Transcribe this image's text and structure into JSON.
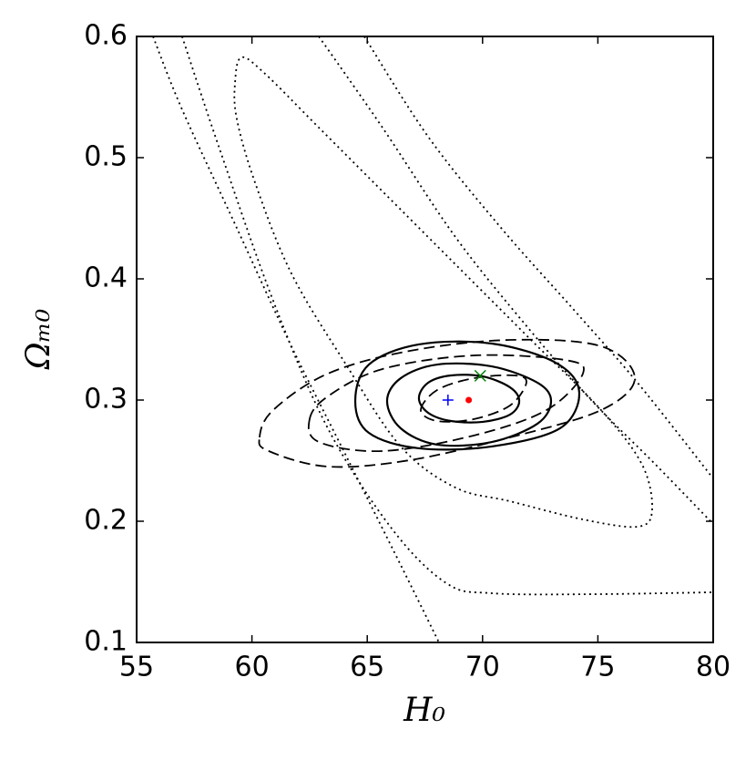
{
  "chart_data": {
    "type": "contour",
    "xlabel": "H₀",
    "ylabel": "Ωₘ₀",
    "xlim": [
      55,
      80
    ],
    "ylim": [
      0.1,
      0.6
    ],
    "xticks": [
      55,
      60,
      65,
      70,
      75,
      80
    ],
    "yticks": [
      0.1,
      0.2,
      0.3,
      0.4,
      0.5,
      0.6
    ],
    "contours": [
      {
        "style": "solid",
        "closed": true,
        "x": [
          67.24,
          67.64,
          68.63,
          70.01,
          71.19,
          71.59,
          71.19,
          70.01,
          68.63,
          67.64
        ],
        "y": [
          0.3015,
          0.3143,
          0.3203,
          0.3195,
          0.3105,
          0.2992,
          0.288,
          0.282,
          0.2827,
          0.2895
        ]
      },
      {
        "style": "solid",
        "closed": true,
        "x": [
          65.86,
          66.45,
          68.03,
          70.4,
          72.38,
          72.97,
          72.38,
          70.4,
          68.03,
          66.45
        ],
        "y": [
          0.2992,
          0.318,
          0.3293,
          0.3278,
          0.3143,
          0.2992,
          0.2805,
          0.2654,
          0.2632,
          0.2767
        ]
      },
      {
        "style": "solid",
        "closed": true,
        "x": [
          64.48,
          65.07,
          67.24,
          70.4,
          73.17,
          74.19,
          73.36,
          70.4,
          67.24,
          65.07
        ],
        "y": [
          0.2992,
          0.3293,
          0.3459,
          0.3466,
          0.3308,
          0.3068,
          0.2767,
          0.2617,
          0.2602,
          0.2729
        ]
      },
      {
        "style": "dashed",
        "closed": true,
        "x": [
          67.32,
          68.03,
          69.61,
          71.39,
          71.9,
          71.19,
          69.61,
          68.03
        ],
        "y": [
          0.2917,
          0.3083,
          0.318,
          0.3203,
          0.3143,
          0.2955,
          0.2842,
          0.2827
        ]
      },
      {
        "style": "dashed",
        "closed": true,
        "x": [
          62.5,
          63.29,
          65.66,
          69.61,
          73.56,
          74.35,
          72.77,
          69.61,
          65.66,
          62.9
        ],
        "y": [
          0.2842,
          0.303,
          0.3256,
          0.3368,
          0.3331,
          0.3218,
          0.2917,
          0.2707,
          0.2579,
          0.2654
        ]
      },
      {
        "style": "dashed",
        "closed": true,
        "x": [
          60.33,
          60.92,
          63.29,
          66.85,
          71.19,
          75.14,
          76.6,
          75.14,
          71.19,
          66.85,
          63.29,
          60.73
        ],
        "y": [
          0.2692,
          0.2917,
          0.3218,
          0.3406,
          0.3496,
          0.3444,
          0.318,
          0.2917,
          0.2692,
          0.2504,
          0.2451,
          0.2579
        ]
      },
      {
        "style": "dotted",
        "closed": true,
        "x": [
          59.27,
          59.54,
          60.53,
          62.9,
          65.66,
          68.82,
          71.98,
          75.14,
          76.92,
          77.35,
          76.72,
          74.35,
          71.19,
          68.82,
          66.45,
          64.08,
          61.71,
          60.13,
          59.34
        ],
        "y": [
          0.5624,
          0.5827,
          0.5699,
          0.5248,
          0.4722,
          0.412,
          0.3519,
          0.2917,
          0.2466,
          0.209,
          0.1955,
          0.2015,
          0.2165,
          0.2278,
          0.2617,
          0.3293,
          0.4045,
          0.4797,
          0.5323
        ]
      },
      {
        "style": "dotted",
        "closed": false,
        "x": [
          55.71,
          56.97,
          59.34,
          61.71,
          64.08,
          66.45,
          68.11
        ],
        "y": [
          0.6,
          0.5398,
          0.4421,
          0.3444,
          0.2541,
          0.1639,
          0.1
        ]
      },
      {
        "style": "dotted",
        "closed": false,
        "x": [
          56.97,
          58.55,
          60.92,
          63.29,
          66.06,
          68.43,
          70.4,
          74.75,
          80
        ],
        "y": [
          0.6,
          0.5098,
          0.382,
          0.2767,
          0.194,
          0.1489,
          0.1406,
          0.1398,
          0.1414
        ]
      },
      {
        "style": "dotted",
        "closed": false,
        "x": [
          62.9,
          65.66,
          68.82,
          71.98,
          74.75,
          77.51,
          80
        ],
        "y": [
          0.6,
          0.5248,
          0.4346,
          0.3594,
          0.2992,
          0.2466,
          0.1977
        ]
      },
      {
        "style": "dotted",
        "closed": false,
        "x": [
          64.87,
          67.64,
          70.8,
          73.96,
          76.72,
          80
        ],
        "y": [
          0.6,
          0.5173,
          0.4421,
          0.3744,
          0.3143,
          0.2353
        ]
      }
    ],
    "markers": [
      {
        "x": 68.5,
        "y": 0.3,
        "marker": "plus",
        "color": "#0000ff"
      },
      {
        "x": 69.4,
        "y": 0.3,
        "marker": "dot",
        "color": "#ff0000"
      },
      {
        "x": 69.9,
        "y": 0.32,
        "marker": "cross",
        "color": "#008000"
      }
    ]
  }
}
